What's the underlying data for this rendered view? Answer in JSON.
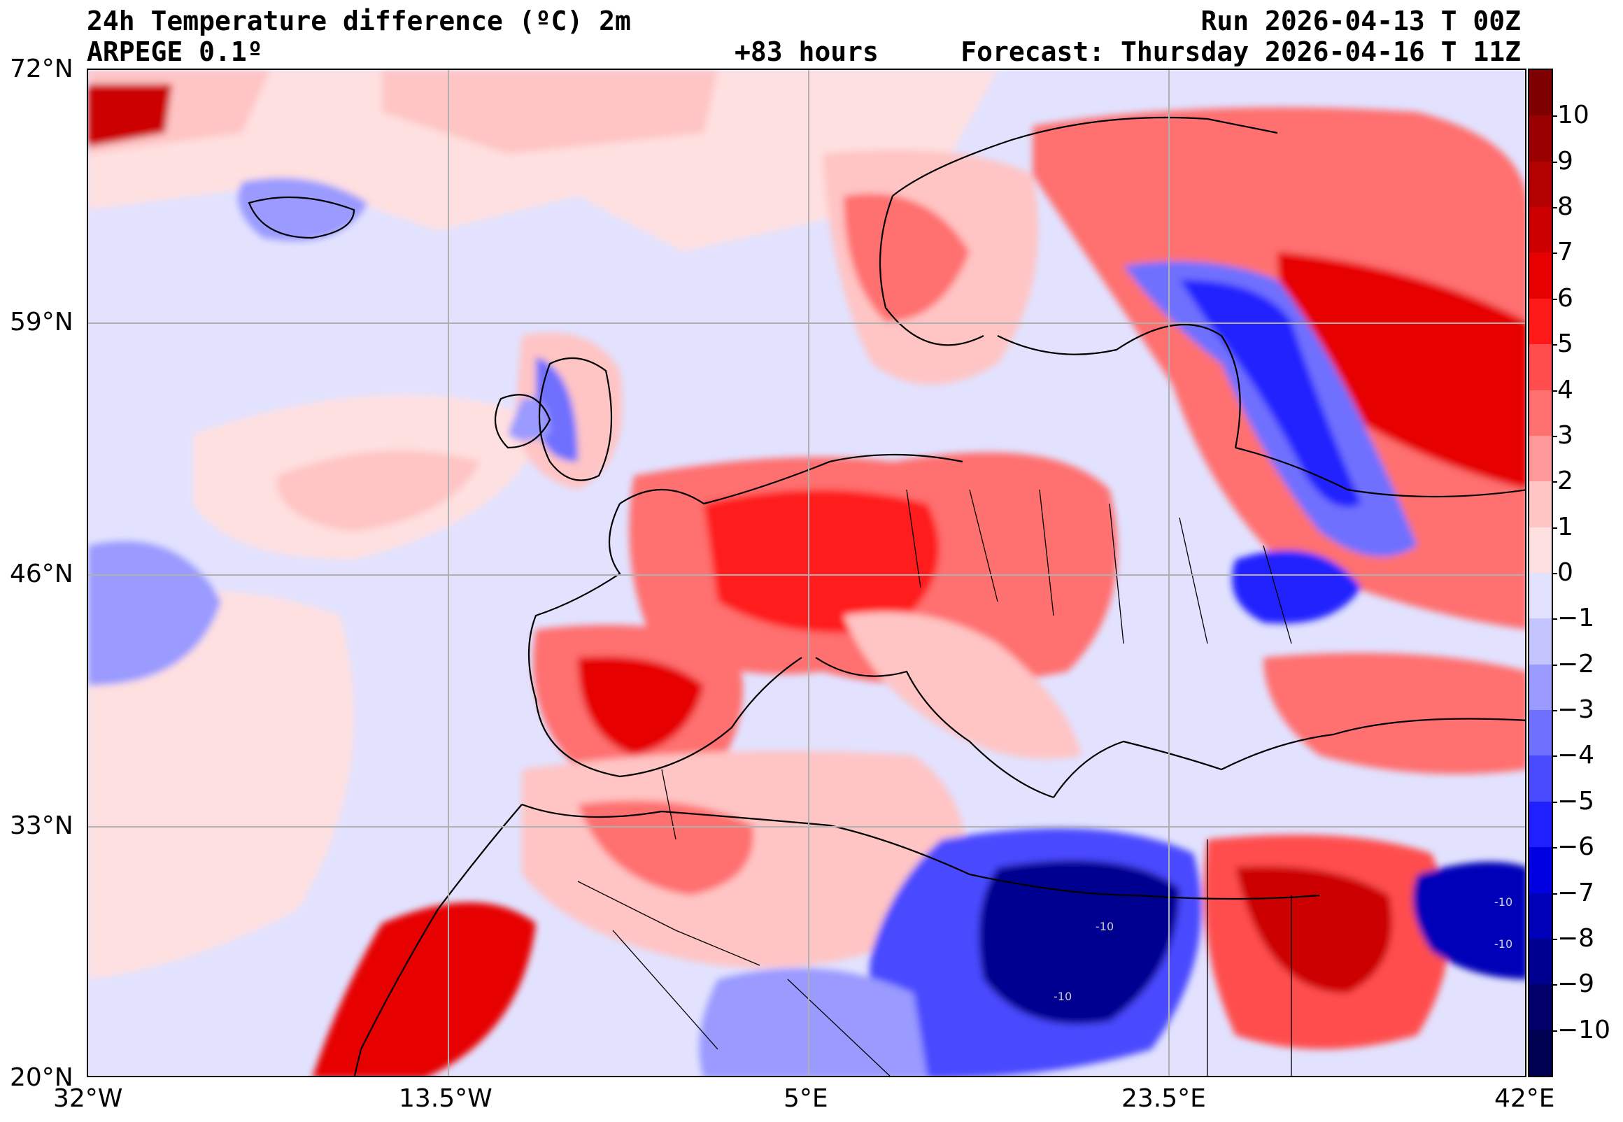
{
  "header": {
    "title": "24h Temperature difference (ºC) 2m",
    "model": "ARPEGE 0.1º",
    "lead_time": "+83 hours",
    "run": "Run 2026-04-13 T 00Z",
    "forecast": "Forecast: Thursday 2026-04-16 T 11Z"
  },
  "map": {
    "lat_ticks": [
      "72°N",
      "59°N",
      "46°N",
      "33°N",
      "20°N"
    ],
    "lon_ticks": [
      "32°W",
      "13.5°W",
      "5°E",
      "23.5°E",
      "42°E"
    ],
    "extent": {
      "lon_min": -32,
      "lon_max": 42,
      "lat_min": 20,
      "lat_max": 72
    },
    "grid": true,
    "contour_labels": [
      "-10",
      "-10",
      "-10",
      "-10"
    ]
  },
  "colorbar": {
    "labels": [
      "10",
      "9",
      "8",
      "7",
      "6",
      "5",
      "4",
      "3",
      "2",
      "1",
      "0",
      "−1",
      "−2",
      "−3",
      "−4",
      "−5",
      "−6",
      "−7",
      "−8",
      "−9",
      "−10"
    ],
    "colors": [
      "#7f0000",
      "#990000",
      "#b30000",
      "#cc0000",
      "#e60000",
      "#ff1a1a",
      "#ff4d4d",
      "#ff7070",
      "#ff9999",
      "#ffc4c4",
      "#ffe0e0",
      "#e2e2ff",
      "#c4c4ff",
      "#9a9aff",
      "#7070ff",
      "#4a4aff",
      "#2020ff",
      "#0000e0",
      "#0000b8",
      "#000090",
      "#000068",
      "#000050"
    ]
  },
  "colors": {
    "background": "#ffffff",
    "neutral_pos": "#ffe0e0",
    "neutral_neg": "#e2e2ff"
  }
}
